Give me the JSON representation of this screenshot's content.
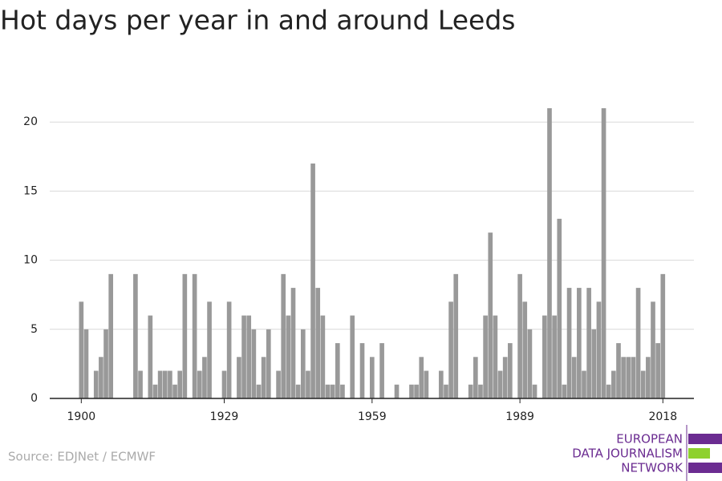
{
  "chart_data": {
    "type": "bar",
    "title": "Hot days per year in and around Leeds",
    "source": "Source: EDJNet / ECMWF",
    "logo": [
      "EUROPEAN",
      "DATA JOURNALISM",
      "NETWORK"
    ],
    "color": "#999999",
    "x": [
      1900,
      1901,
      1902,
      1903,
      1904,
      1905,
      1906,
      1907,
      1908,
      1909,
      1910,
      1911,
      1912,
      1913,
      1914,
      1915,
      1916,
      1917,
      1918,
      1919,
      1920,
      1921,
      1922,
      1923,
      1924,
      1925,
      1926,
      1927,
      1928,
      1929,
      1930,
      1931,
      1932,
      1933,
      1934,
      1935,
      1936,
      1937,
      1938,
      1939,
      1940,
      1941,
      1942,
      1943,
      1944,
      1945,
      1946,
      1947,
      1948,
      1949,
      1950,
      1951,
      1952,
      1953,
      1954,
      1955,
      1956,
      1957,
      1958,
      1959,
      1960,
      1961,
      1962,
      1963,
      1964,
      1965,
      1966,
      1967,
      1968,
      1969,
      1970,
      1971,
      1972,
      1973,
      1974,
      1975,
      1976,
      1977,
      1978,
      1979,
      1980,
      1981,
      1982,
      1983,
      1984,
      1985,
      1986,
      1987,
      1988,
      1989,
      1990,
      1991,
      1992,
      1993,
      1994,
      1995,
      1996,
      1997,
      1998,
      1999,
      2000,
      2001,
      2002,
      2003,
      2004,
      2005,
      2006,
      2007,
      2008,
      2009,
      2010,
      2011,
      2012,
      2013,
      2014,
      2015,
      2016,
      2017,
      2018
    ],
    "values": [
      7,
      5,
      0,
      2,
      3,
      5,
      9,
      0,
      0,
      0,
      0,
      9,
      2,
      0,
      6,
      1,
      2,
      2,
      2,
      1,
      2,
      9,
      0,
      9,
      2,
      3,
      7,
      0,
      0,
      2,
      7,
      0,
      3,
      6,
      6,
      5,
      1,
      3,
      5,
      0,
      2,
      9,
      6,
      8,
      1,
      5,
      2,
      17,
      8,
      6,
      1,
      1,
      4,
      1,
      0,
      6,
      0,
      4,
      0,
      3,
      0,
      4,
      0,
      0,
      1,
      0,
      0,
      1,
      1,
      3,
      2,
      0,
      0,
      2,
      1,
      7,
      9,
      0,
      0,
      1,
      3,
      1,
      6,
      12,
      6,
      2,
      3,
      4,
      0,
      9,
      7,
      5,
      1,
      0,
      6,
      21,
      6,
      13,
      1,
      8,
      3,
      8,
      2,
      8,
      5,
      7,
      21,
      1,
      2,
      4,
      3,
      3,
      3,
      8,
      2,
      3,
      7,
      4,
      9
    ],
    "xlim": [
      1893.6,
      2024.3
    ],
    "xticks": [
      1900,
      1929,
      1959,
      1989,
      2018
    ],
    "ylim": [
      0,
      21
    ],
    "yticks": [
      0,
      5,
      10,
      15,
      20
    ],
    "grid": true
  }
}
